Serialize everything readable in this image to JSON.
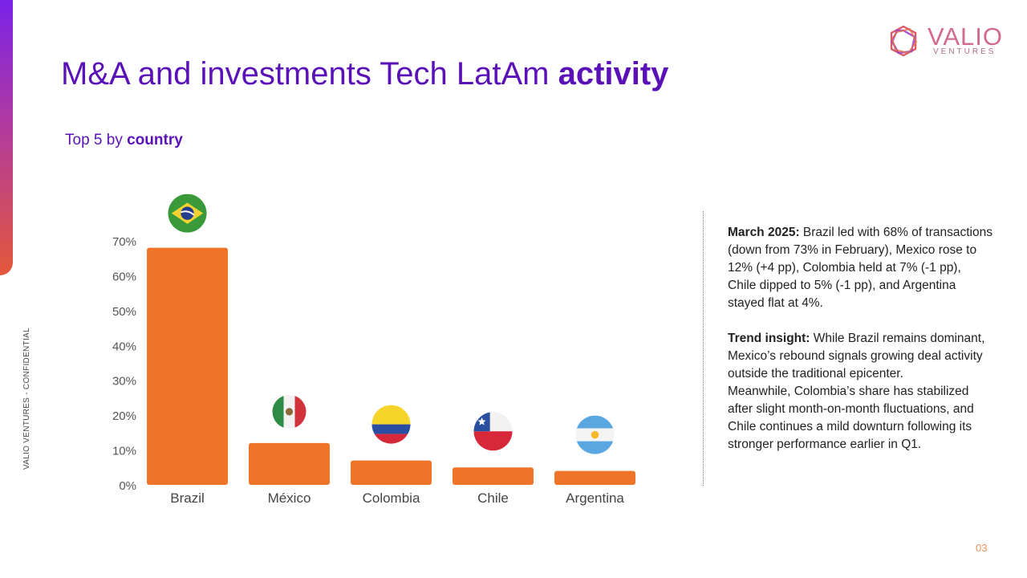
{
  "slide": {
    "title_regular": "M&A and investments Tech LatAm ",
    "title_bold": "activity",
    "subtitle_regular": "Top 5 by ",
    "subtitle_bold": "country",
    "side_label": "VALIO VENTURES - CONFIDENTIAL",
    "page_number": "03"
  },
  "logo": {
    "name": "VALIO",
    "sub": "VENTURES",
    "icon": "hexagon-knot-logo-icon"
  },
  "colors": {
    "accent": "#5a12b8",
    "bar": "#ef7427",
    "gradient_top": "#7a22e8",
    "gradient_bottom": "#e3583a"
  },
  "chart_data": {
    "type": "bar",
    "categories": [
      "Brazil",
      "México",
      "Colombia",
      "Chile",
      "Argentina"
    ],
    "values": [
      68,
      12,
      7,
      5,
      4
    ],
    "ylim": [
      0,
      70
    ],
    "yticks": [
      "0%",
      "10%",
      "20%",
      "30%",
      "40%",
      "50%",
      "60%",
      "70%"
    ],
    "flags": [
      "brazil-flag-icon",
      "mexico-flag-icon",
      "colombia-flag-icon",
      "chile-flag-icon",
      "argentina-flag-icon"
    ],
    "title": "",
    "xlabel": "",
    "ylabel": "",
    "grid": false
  },
  "insight": {
    "march_label": "March 2025:",
    "march_text": " Brazil led with 68% of transactions (down from 73% in February), Mexico rose to 12% (+4 pp), Colombia held at 7% (-1 pp), Chile dipped to 5% (-1 pp), and Argentina stayed flat at 4%.",
    "trend_label": "Trend insight:",
    "trend_text": " While Brazil remains dominant, Mexico’s rebound signals growing deal activity outside the traditional epicenter.",
    "trend_text_2": "Meanwhile, Colombia’s share has stabilized after slight month-on-month fluctuations, and Chile continues a mild downturn following its stronger performance earlier in Q1."
  }
}
